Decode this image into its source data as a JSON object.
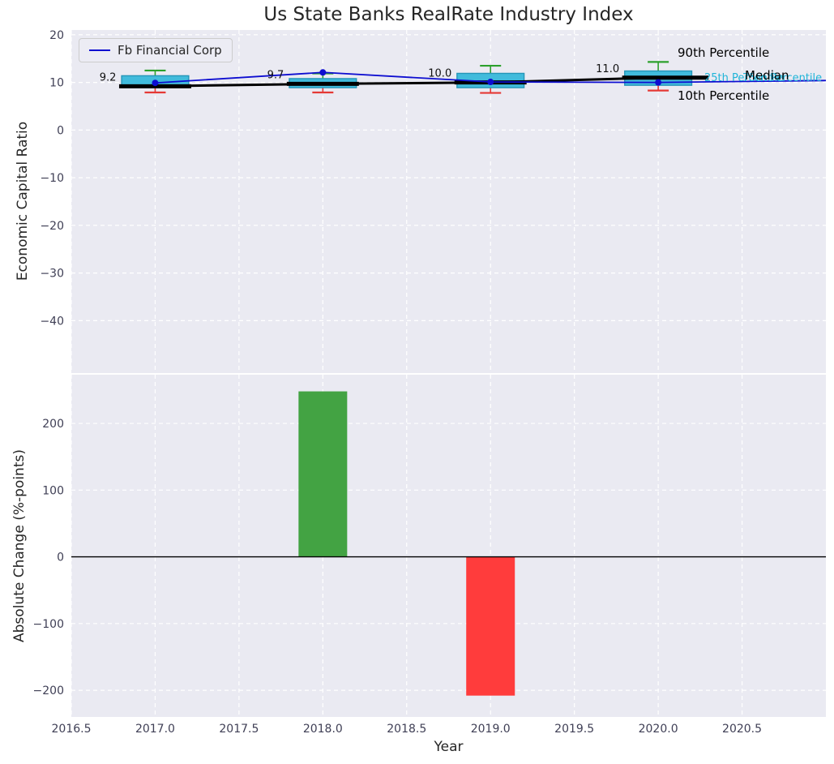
{
  "title": "Us State Banks RealRate Industry Index",
  "colors": {
    "plot_bg": "#eaeaf2",
    "grid": "#ffffff",
    "box_fill": "#41bbdc",
    "box_edge": "#2596b8",
    "whisker_top": "#2ca02c",
    "whisker_bottom": "#e53935",
    "median": "#000000",
    "company_line": "#0d0dd0",
    "bar_positive": "#43a343",
    "bar_negative": "#ff3c3c",
    "tick_text": "#3f3f55",
    "annotation_cyan": "#1fb4d8"
  },
  "chart_data": [
    {
      "type": "boxplot",
      "ylabel": "Economic Capital Ratio",
      "ylim": [
        -51,
        21
      ],
      "xlim": [
        2016.5,
        2021.0
      ],
      "ytick_values": [
        20,
        10,
        0,
        -10,
        -20,
        -30,
        -40
      ],
      "ytick_labels": [
        "20",
        "10",
        "0",
        "−10",
        "−20",
        "−30",
        "−40"
      ],
      "legend": {
        "label": "Fb Financial Corp",
        "position": "upper left"
      },
      "boxes": [
        {
          "x": 2017,
          "whisker_low": 7.9,
          "q1": 8.9,
          "median": 9.2,
          "q3": 11.4,
          "whisker_high": 12.5,
          "label": "9.2"
        },
        {
          "x": 2018,
          "whisker_low": 7.9,
          "q1": 8.9,
          "median": 9.7,
          "q3": 10.8,
          "whisker_high": 11.9,
          "label": "9.7"
        },
        {
          "x": 2019,
          "whisker_low": 7.8,
          "q1": 8.9,
          "median": 10.0,
          "q3": 11.9,
          "whisker_high": 13.5,
          "label": "10.0"
        },
        {
          "x": 2020,
          "whisker_low": 8.3,
          "q1": 9.4,
          "median": 11.0,
          "q3": 12.4,
          "whisker_high": 14.3,
          "label": "11.0"
        }
      ],
      "series": [
        {
          "name": "Fb Financial Corp",
          "x": [
            2017,
            2018,
            2019,
            2020,
            2021
          ],
          "values": [
            9.9,
            12.1,
            10.1,
            10.0,
            10.4
          ],
          "marker_x": [
            2017,
            2018,
            2019,
            2020
          ]
        },
        {
          "name": "Median",
          "x": [
            2017,
            2018,
            2019,
            2020
          ],
          "values": [
            9.2,
            9.7,
            10.0,
            11.0
          ]
        }
      ],
      "annotations": [
        {
          "text": "90th Percentile",
          "color": "#000000"
        },
        {
          "text": "Median",
          "color": "#000000"
        },
        {
          "text": "25th Percentile",
          "color": "#1fb4d8"
        },
        {
          "text": "75th Percentile",
          "color": "#1fb4d8"
        },
        {
          "text": "10th Percentile",
          "color": "#000000"
        }
      ]
    },
    {
      "type": "bar",
      "ylabel": "Absolute Change (%-points)",
      "xlabel": "Year",
      "ylim": [
        -240,
        273
      ],
      "ytick_values": [
        200,
        100,
        0,
        -100,
        -200
      ],
      "ytick_labels": [
        "200",
        "100",
        "0",
        "−100",
        "−200"
      ],
      "xtick_values": [
        2016.5,
        2017.0,
        2017.5,
        2018.0,
        2018.5,
        2019.0,
        2019.5,
        2020.0,
        2020.5
      ],
      "xtick_labels": [
        "2016.5",
        "2017.0",
        "2017.5",
        "2018.0",
        "2018.5",
        "2019.0",
        "2019.5",
        "2020.0",
        "2020.5"
      ],
      "categories": [
        2017,
        2018,
        2019,
        2020
      ],
      "values": [
        0,
        248,
        -208,
        0
      ],
      "bar_width": 0.29
    }
  ]
}
